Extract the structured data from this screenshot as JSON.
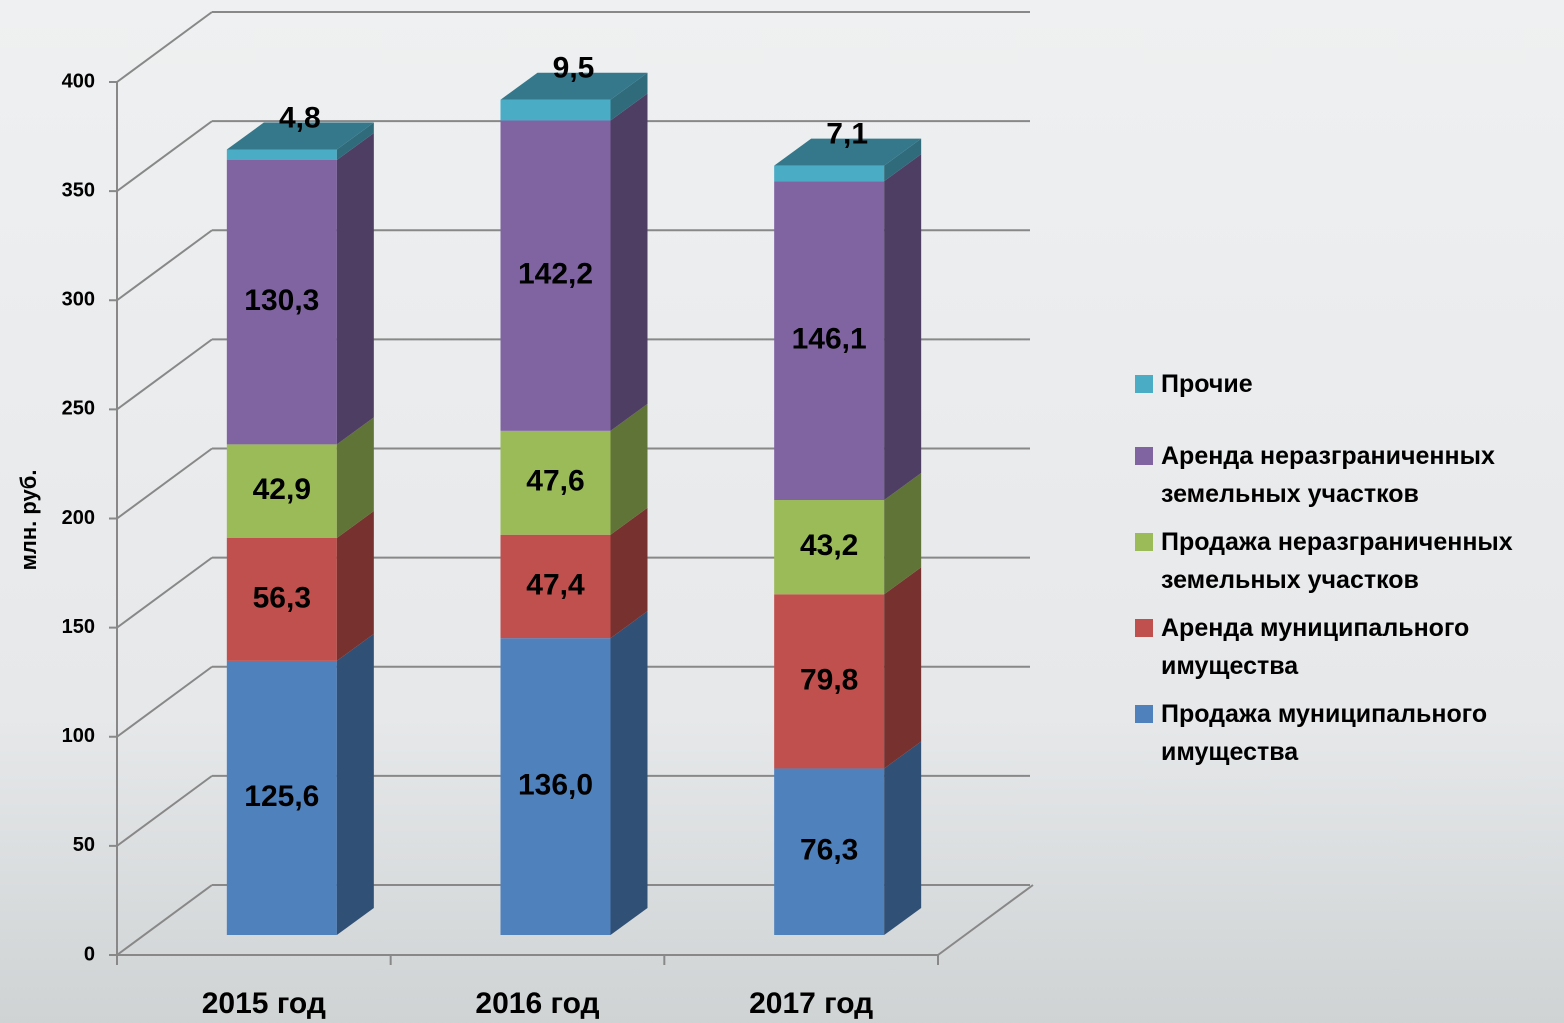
{
  "chart_data": {
    "type": "bar",
    "stacked": true,
    "y_label": "млн. руб.",
    "categories": [
      "2015 год",
      "2016 год",
      "2017 год"
    ],
    "ylim": [
      0,
      400
    ],
    "yticks": [
      0,
      50,
      100,
      150,
      200,
      250,
      300,
      350,
      400
    ],
    "grid": true,
    "series": [
      {
        "name": "Продажа муниципального имущества",
        "color": "#4f81bd",
        "values": [
          125.6,
          136.0,
          76.3
        ],
        "value_labels": [
          "125,6",
          "136,0",
          "76,3"
        ]
      },
      {
        "name": "Аренда муниципального имущества",
        "color": "#c0504d",
        "values": [
          56.3,
          47.4,
          79.8
        ],
        "value_labels": [
          "56,3",
          "47,4",
          "79,8"
        ]
      },
      {
        "name": "Продажа неразграниченных земельных участков",
        "color": "#9bbb59",
        "values": [
          42.9,
          47.6,
          43.2
        ],
        "value_labels": [
          "42,9",
          "47,6",
          "43,2"
        ]
      },
      {
        "name": "Аренда неразграниченных земельных участков",
        "color": "#8064a2",
        "values": [
          130.3,
          142.2,
          146.1
        ],
        "value_labels": [
          "130,3",
          "142,2",
          "146,1"
        ]
      },
      {
        "name": "Прочие",
        "color": "#4bacc6",
        "values": [
          4.8,
          9.5,
          7.1
        ],
        "value_labels": [
          "4,8",
          "9,5",
          "7,1"
        ]
      }
    ]
  }
}
